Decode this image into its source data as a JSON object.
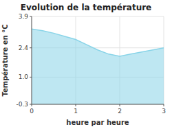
{
  "chart_data": {
    "type": "area",
    "title": "Evolution de la température",
    "x_label": "heure par heure",
    "y_label": "Température en °C",
    "x": [
      0,
      0.25,
      0.5,
      0.75,
      1.0,
      1.25,
      1.5,
      1.75,
      2.0,
      2.25,
      2.5,
      2.75,
      3.0
    ],
    "values": [
      3.3,
      3.22,
      3.1,
      2.95,
      2.8,
      2.55,
      2.3,
      2.1,
      2.0,
      2.1,
      2.2,
      2.3,
      2.4
    ],
    "xlim": [
      0,
      3
    ],
    "ylim": [
      -0.3,
      3.9
    ],
    "xticks": [
      0,
      1,
      2,
      3
    ],
    "yticks": [
      -0.3,
      {
        "value": 1.0,
        "label": "1.0"
      },
      2.4,
      3.9
    ],
    "color": "#89d4e8",
    "grid": true
  }
}
